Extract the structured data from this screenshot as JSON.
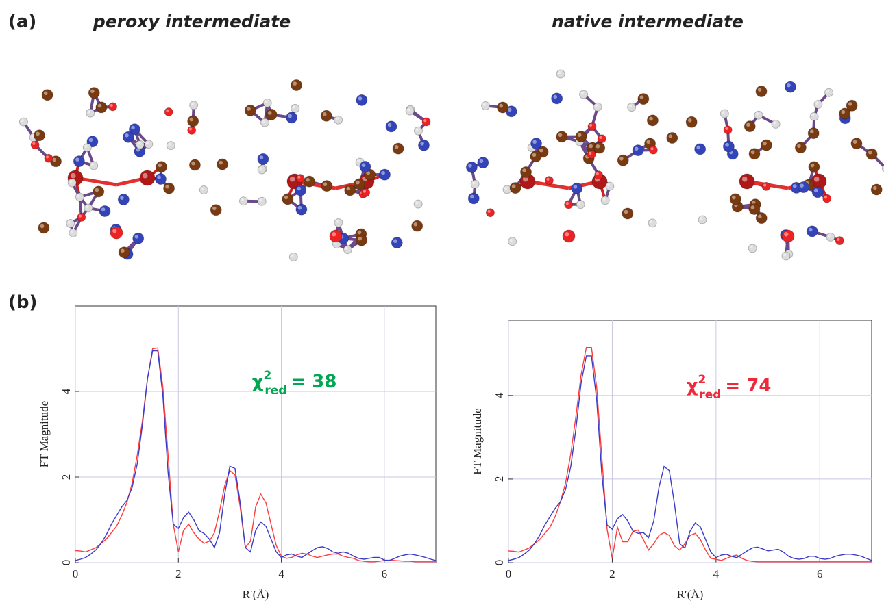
{
  "panel_labels": [
    "(a)",
    "(b)"
  ],
  "structure_titles": [
    "peroxy intermediate",
    "native intermediate"
  ],
  "chart_data": [
    {
      "type": "line",
      "xlabel": "R′(Å)",
      "ylabel": "FT Magnitude",
      "grid": true,
      "xlim": [
        0,
        7
      ],
      "ylim": [
        0,
        6
      ],
      "xticks": [
        0,
        2,
        4,
        6
      ],
      "yticks": [
        0,
        2,
        4
      ],
      "x": [
        0,
        0.1,
        0.2,
        0.3,
        0.4,
        0.5,
        0.6,
        0.7,
        0.8,
        0.9,
        1,
        1.1,
        1.2,
        1.3,
        1.4,
        1.5,
        1.6,
        1.7,
        1.8,
        1.9,
        2,
        2.1,
        2.2,
        2.3,
        2.4,
        2.5,
        2.6,
        2.7,
        2.8,
        2.9,
        3,
        3.1,
        3.2,
        3.3,
        3.4,
        3.5,
        3.6,
        3.7,
        3.8,
        3.9,
        4,
        4.1,
        4.2,
        4.3,
        4.4,
        4.5,
        4.6,
        4.7,
        4.8,
        4.9,
        5,
        5.1,
        5.2,
        5.3,
        5.4,
        5.5,
        5.6,
        5.7,
        5.8,
        5.9,
        6,
        6.1,
        6.2,
        6.3,
        6.4,
        6.5,
        6.6,
        6.7,
        6.8,
        6.9,
        7
      ],
      "series": [
        {
          "color": "#ff3b3b",
          "values": [
            0.28,
            0.27,
            0.25,
            0.3,
            0.35,
            0.45,
            0.55,
            0.7,
            0.85,
            1.1,
            1.4,
            1.85,
            2.5,
            3.3,
            4.3,
            5.0,
            5.02,
            4.1,
            2.5,
            0.9,
            0.25,
            0.75,
            0.9,
            0.7,
            0.55,
            0.45,
            0.5,
            0.7,
            1.2,
            1.8,
            2.15,
            2.05,
            1.3,
            0.35,
            0.5,
            1.3,
            1.6,
            1.4,
            0.9,
            0.4,
            0.15,
            0.1,
            0.12,
            0.18,
            0.22,
            0.2,
            0.15,
            0.12,
            0.15,
            0.18,
            0.2,
            0.2,
            0.15,
            0.12,
            0.1,
            0.05,
            0.03,
            0.02,
            0.02,
            0.03,
            0.05,
            0.06,
            0.05,
            0.04,
            0.03,
            0.03,
            0.02,
            0.02,
            0.02,
            0.02,
            0.02
          ]
        },
        {
          "color": "#3b3bc8",
          "values": [
            0.05,
            0.08,
            0.12,
            0.2,
            0.3,
            0.45,
            0.65,
            0.9,
            1.1,
            1.3,
            1.45,
            1.75,
            2.3,
            3.2,
            4.3,
            4.95,
            4.95,
            3.9,
            2.1,
            0.9,
            0.8,
            1.05,
            1.18,
            1.0,
            0.75,
            0.68,
            0.55,
            0.35,
            0.7,
            1.6,
            2.25,
            2.2,
            1.4,
            0.35,
            0.25,
            0.75,
            0.95,
            0.85,
            0.55,
            0.25,
            0.12,
            0.18,
            0.2,
            0.15,
            0.12,
            0.2,
            0.28,
            0.35,
            0.37,
            0.33,
            0.25,
            0.22,
            0.25,
            0.22,
            0.15,
            0.1,
            0.08,
            0.1,
            0.12,
            0.12,
            0.06,
            0.05,
            0.1,
            0.15,
            0.18,
            0.2,
            0.18,
            0.15,
            0.12,
            0.08,
            0.05
          ]
        }
      ],
      "annotation": {
        "symbol": "χ",
        "superscript": "2",
        "subscript": "red",
        "text": "= 38",
        "color": "#00a651"
      }
    },
    {
      "type": "line",
      "xlabel": "R′(Å)",
      "ylabel": "FT Magnitude",
      "grid": true,
      "xlim": [
        0,
        7
      ],
      "ylim": [
        0,
        5.8
      ],
      "xticks": [
        0,
        2,
        4,
        6
      ],
      "yticks": [
        0,
        2,
        4
      ],
      "x": [
        0,
        0.1,
        0.2,
        0.3,
        0.4,
        0.5,
        0.6,
        0.7,
        0.8,
        0.9,
        1,
        1.1,
        1.2,
        1.3,
        1.4,
        1.5,
        1.6,
        1.7,
        1.8,
        1.9,
        2,
        2.1,
        2.2,
        2.3,
        2.4,
        2.5,
        2.6,
        2.7,
        2.8,
        2.9,
        3,
        3.1,
        3.2,
        3.3,
        3.4,
        3.5,
        3.6,
        3.7,
        3.8,
        3.9,
        4,
        4.1,
        4.2,
        4.3,
        4.4,
        4.5,
        4.6,
        4.7,
        4.8,
        4.9,
        5,
        5.1,
        5.2,
        5.3,
        5.4,
        5.5,
        5.6,
        5.7,
        5.8,
        5.9,
        6,
        6.1,
        6.2,
        6.3,
        6.4,
        6.5,
        6.6,
        6.7,
        6.8,
        6.9,
        7
      ],
      "series": [
        {
          "color": "#ff3b3b",
          "values": [
            0.28,
            0.27,
            0.25,
            0.3,
            0.35,
            0.45,
            0.55,
            0.7,
            0.85,
            1.1,
            1.45,
            1.9,
            2.6,
            3.5,
            4.5,
            5.15,
            5.15,
            4.2,
            2.5,
            0.8,
            0.1,
            0.85,
            0.5,
            0.5,
            0.75,
            0.78,
            0.55,
            0.3,
            0.45,
            0.65,
            0.72,
            0.65,
            0.4,
            0.3,
            0.45,
            0.65,
            0.7,
            0.55,
            0.3,
            0.1,
            0.08,
            0.05,
            0.1,
            0.15,
            0.18,
            0.1,
            0.05,
            0.03,
            0.02,
            0.02,
            0.02,
            0.02,
            0.02,
            0.02,
            0.02,
            0.02,
            0.02,
            0.02,
            0.02,
            0.02,
            0.02,
            0.02,
            0.02,
            0.02,
            0.02,
            0.02,
            0.02,
            0.02,
            0.02,
            0.02,
            0.02
          ]
        },
        {
          "color": "#3b3bc8",
          "values": [
            0.05,
            0.08,
            0.12,
            0.2,
            0.3,
            0.45,
            0.65,
            0.9,
            1.1,
            1.3,
            1.45,
            1.75,
            2.3,
            3.2,
            4.3,
            4.95,
            4.95,
            3.9,
            2.1,
            0.9,
            0.8,
            1.05,
            1.15,
            1.0,
            0.75,
            0.7,
            0.72,
            0.6,
            1.0,
            1.8,
            2.3,
            2.2,
            1.4,
            0.45,
            0.35,
            0.75,
            0.95,
            0.85,
            0.55,
            0.25,
            0.12,
            0.18,
            0.2,
            0.15,
            0.12,
            0.2,
            0.28,
            0.35,
            0.37,
            0.33,
            0.28,
            0.3,
            0.32,
            0.25,
            0.15,
            0.1,
            0.08,
            0.1,
            0.15,
            0.15,
            0.1,
            0.08,
            0.1,
            0.15,
            0.18,
            0.2,
            0.2,
            0.18,
            0.15,
            0.1,
            0.05
          ]
        }
      ],
      "annotation": {
        "symbol": "χ",
        "superscript": "2",
        "subscript": "red",
        "text": "= 74",
        "color": "#ee2a3a"
      }
    }
  ]
}
